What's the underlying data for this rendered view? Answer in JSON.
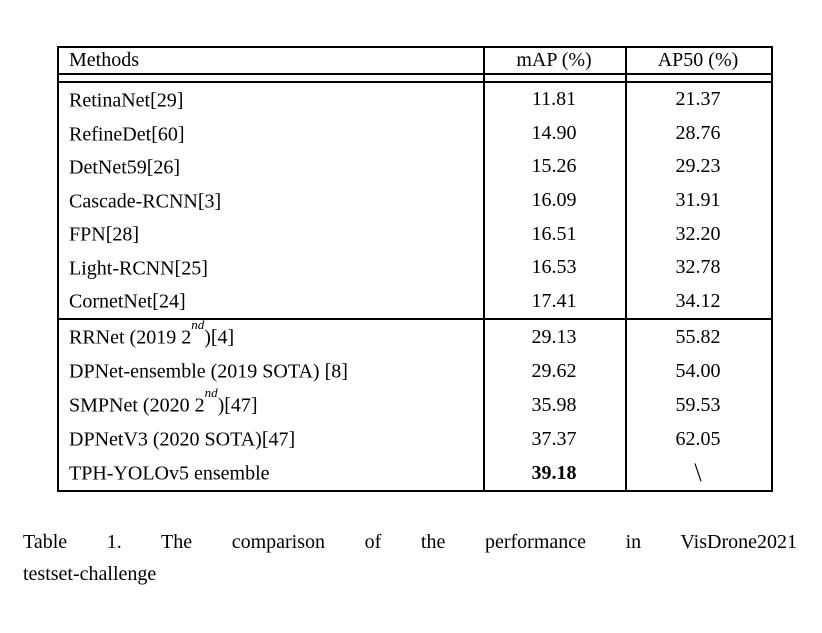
{
  "page": {
    "background": "#ffffff",
    "text_color": "#000000",
    "border_color": "#000000"
  },
  "table": {
    "headers": [
      "Methods",
      "mAP (%)",
      "AP50 (%)"
    ],
    "group1": [
      {
        "name": "RetinaNet[29]",
        "sup": "",
        "post": "",
        "map": "11.81",
        "ap50": "21.37"
      },
      {
        "name": "RefineDet[60]",
        "sup": "",
        "post": "",
        "map": "14.90",
        "ap50": "28.76"
      },
      {
        "name": "DetNet59[26]",
        "sup": "",
        "post": "",
        "map": "15.26",
        "ap50": "29.23"
      },
      {
        "name": "Cascade-RCNN[3]",
        "sup": "",
        "post": "",
        "map": "16.09",
        "ap50": "31.91"
      },
      {
        "name": "FPN[28]",
        "sup": "",
        "post": "",
        "map": "16.51",
        "ap50": "32.20"
      },
      {
        "name": "Light-RCNN[25]",
        "sup": "",
        "post": "",
        "map": "16.53",
        "ap50": "32.78"
      },
      {
        "name": "CornetNet[24]",
        "sup": "",
        "post": "",
        "map": "17.41",
        "ap50": "34.12"
      }
    ],
    "group2": [
      {
        "name": "RRNet (2019 2",
        "sup": "nd",
        "post": ")[4]",
        "map": "29.13",
        "ap50": "55.82"
      },
      {
        "name": "DPNet-ensemble (2019 SOTA) [8]",
        "sup": "",
        "post": "",
        "map": "29.62",
        "ap50": "54.00"
      },
      {
        "name": "SMPNet (2020 2",
        "sup": "nd",
        "post": ")[47]",
        "map": "35.98",
        "ap50": "59.53"
      },
      {
        "name": "DPNetV3 (2020 SOTA)[47]",
        "sup": "",
        "post": "",
        "map": "37.37",
        "ap50": "62.05"
      },
      {
        "name": "TPH-YOLOv5 ensemble",
        "sup": "",
        "post": "",
        "map": "39.18",
        "ap50": "\\"
      }
    ]
  },
  "caption": {
    "line1": "Table 1. The comparison of the performance in VisDrone2021",
    "line2": "testset-challenge"
  }
}
